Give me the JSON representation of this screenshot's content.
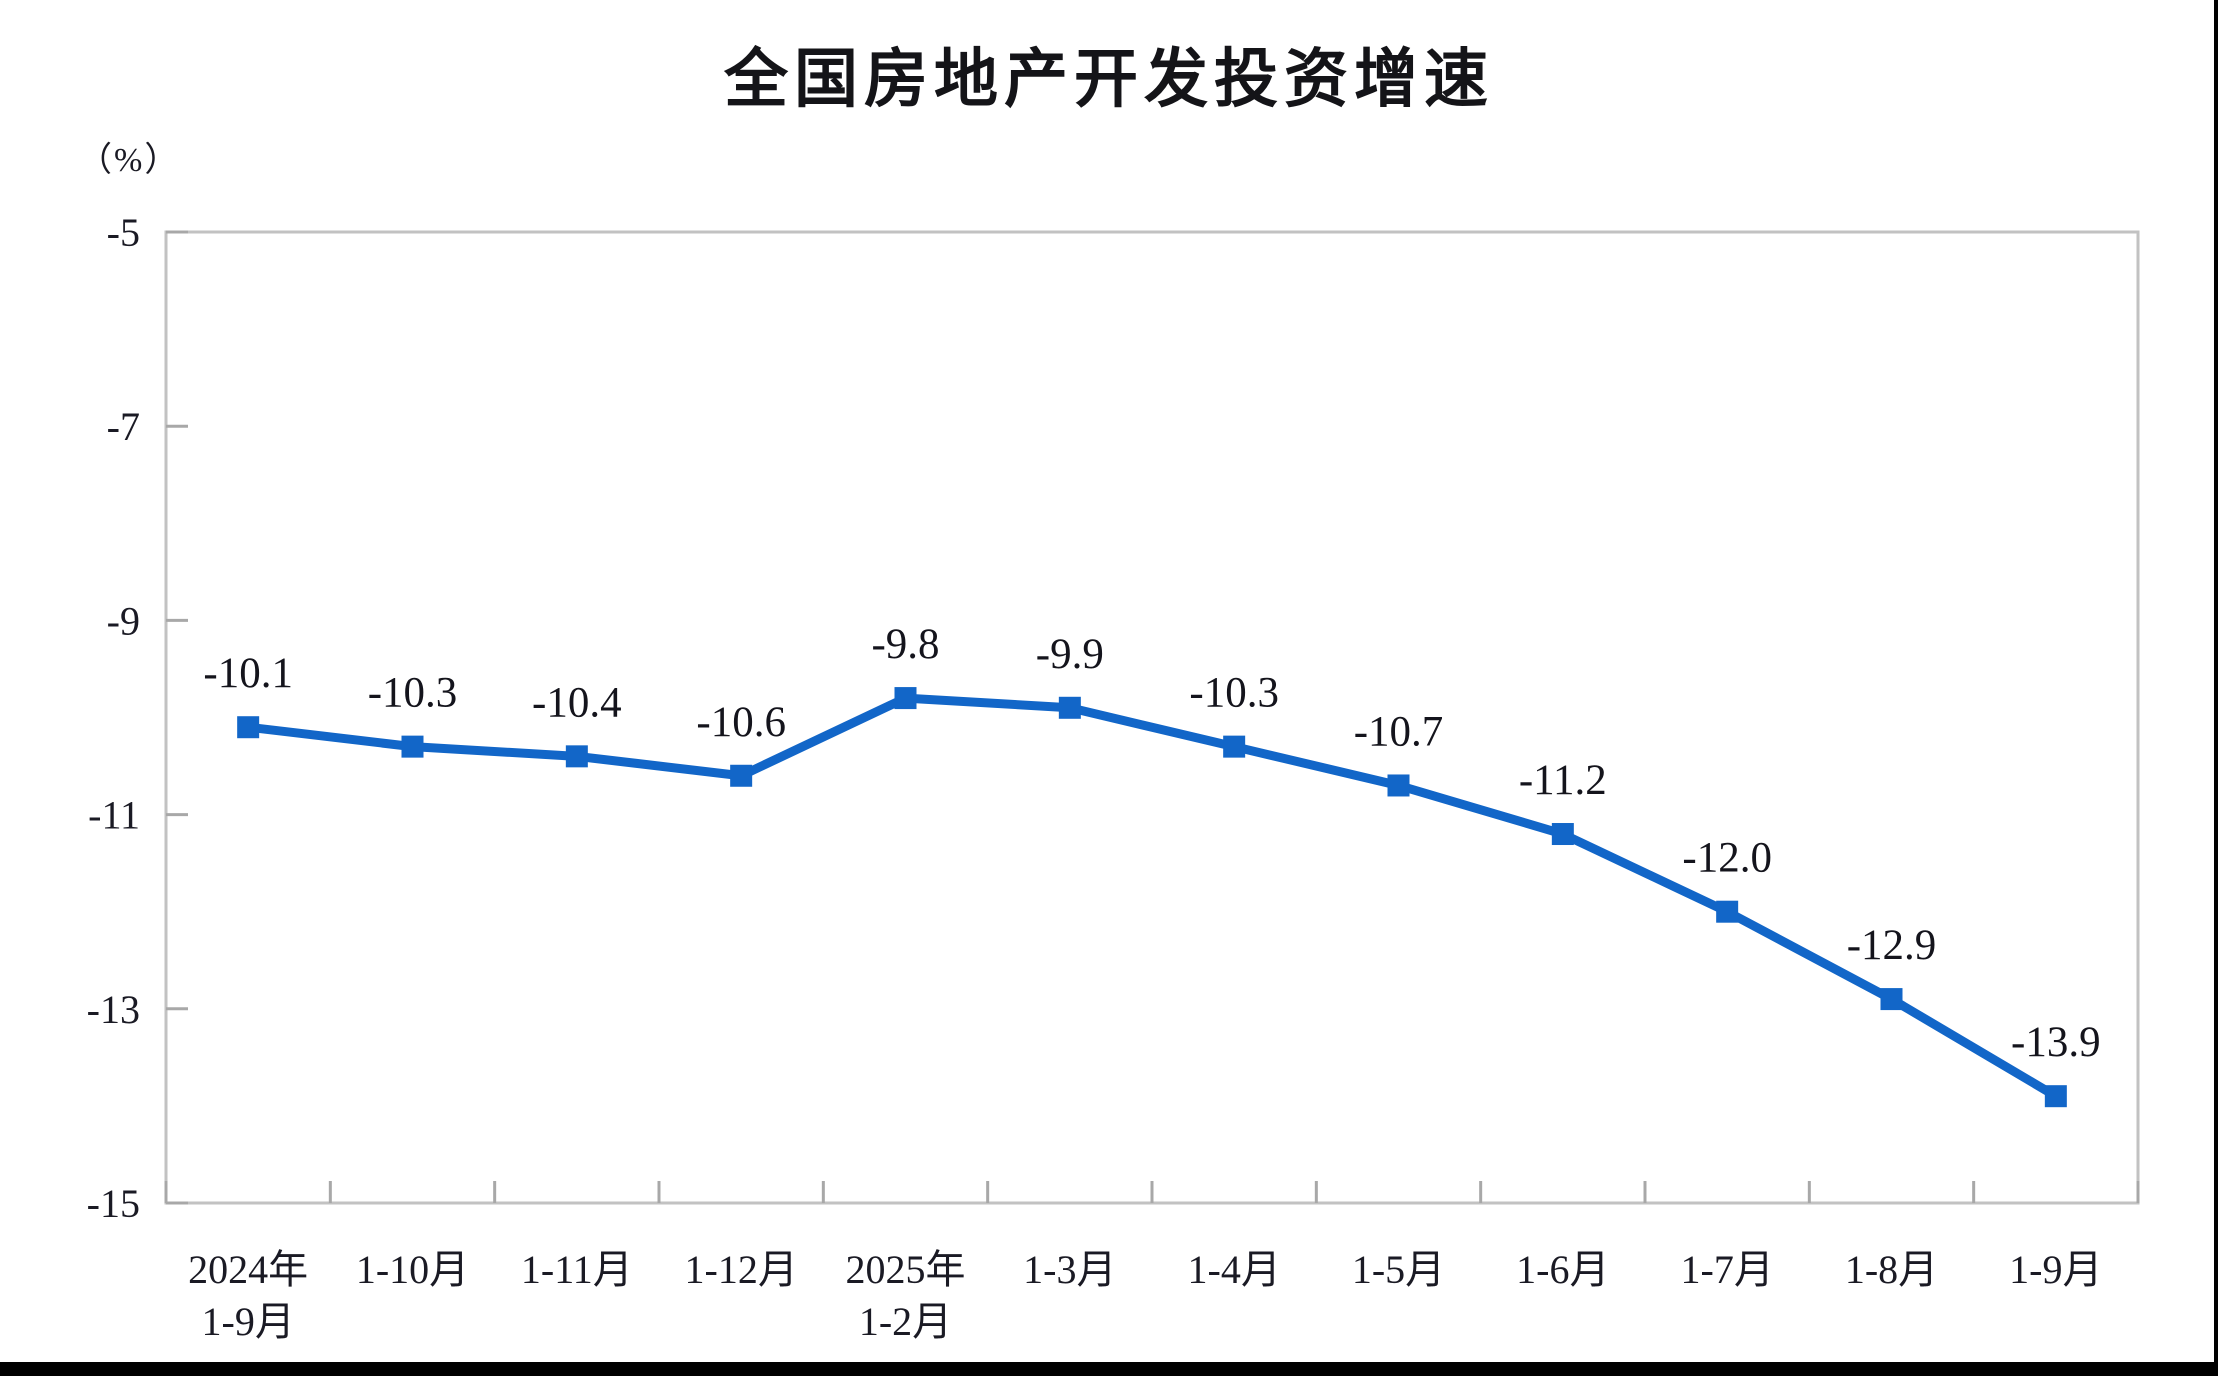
{
  "page": {
    "title": "全国房地产开发投资增速",
    "unit_label": "（%）"
  },
  "chart_data": {
    "type": "line",
    "title": "全国房地产开发投资增速",
    "ylabel": "（%）",
    "xlabel": "",
    "categories": [
      [
        "2024年",
        "1-9月"
      ],
      [
        "1-10月"
      ],
      [
        "1-11月"
      ],
      [
        "1-12月"
      ],
      [
        "2025年",
        "1-2月"
      ],
      [
        "1-3月"
      ],
      [
        "1-4月"
      ],
      [
        "1-5月"
      ],
      [
        "1-6月"
      ],
      [
        "1-7月"
      ],
      [
        "1-8月"
      ],
      [
        "1-9月"
      ]
    ],
    "series": [
      {
        "name": "全国房地产开发投资增速",
        "values": [
          -10.1,
          -10.3,
          -10.4,
          -10.6,
          -9.8,
          -9.9,
          -10.3,
          -10.7,
          -11.2,
          -12.0,
          -12.9,
          -13.9
        ]
      }
    ],
    "data_labels": [
      "-10.1",
      "-10.3",
      "-10.4",
      "-10.6",
      "-9.8",
      "-9.9",
      "-10.3",
      "-10.7",
      "-11.2",
      "-12.0",
      "-12.9",
      "-13.9"
    ],
    "y_axis": {
      "min": -15,
      "max": -5,
      "ticks": [
        -5,
        -7,
        -9,
        -11,
        -13,
        -15
      ],
      "tick_labels": [
        "-5",
        "-7",
        "-9",
        "-11",
        "-13",
        "-15"
      ]
    },
    "ylim": [
      -15,
      -5
    ],
    "grid": false,
    "legend_position": "none",
    "marker": "square",
    "colors": {
      "line": "#1266c8",
      "marker": "#1266c8",
      "plot_border": "#c2c2c2",
      "tick": "#a8a8a8",
      "label_text": "#14141c",
      "axis_text": "#1a1a24",
      "frame_black": "#000000"
    }
  }
}
